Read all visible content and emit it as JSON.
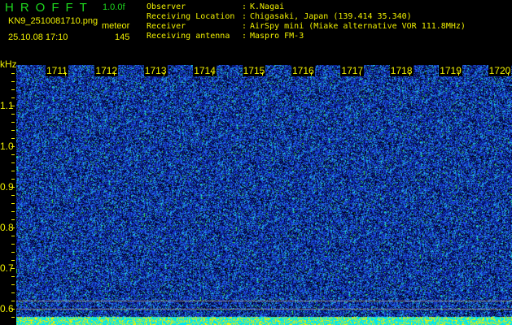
{
  "header": {
    "app_title": "HROFFT",
    "version": "1.0.0f",
    "filename": "KN9_2510081710.png",
    "mode": "meteor",
    "datetime": "25.10.08 17:10",
    "count": "145"
  },
  "info": [
    {
      "label": "Observer",
      "value": "K.Nagai"
    },
    {
      "label": "Receiving Location",
      "value": "Chigasaki, Japan (139.414 35.340)"
    },
    {
      "label": "Receiver",
      "value": "AirSpy mini (Miake alternative VOR 111.8MHz)"
    },
    {
      "label": "Receiving antenna",
      "value": "Maspro FM-3"
    }
  ],
  "axis": {
    "y_unit": "kHz",
    "y_ticks": [
      "1.1",
      "1.0",
      "0.9",
      "0.8",
      "0.7",
      "0.6"
    ],
    "time_labels": [
      "1711",
      "1712",
      "1713",
      "1714",
      "1715",
      "1716",
      "1717",
      "1718",
      "1719",
      "1720"
    ]
  },
  "colors": {
    "text": "#f0f000",
    "title": "#1ed81e",
    "noise_low": "#0a1a8c",
    "noise_high": "#20e0e0"
  }
}
